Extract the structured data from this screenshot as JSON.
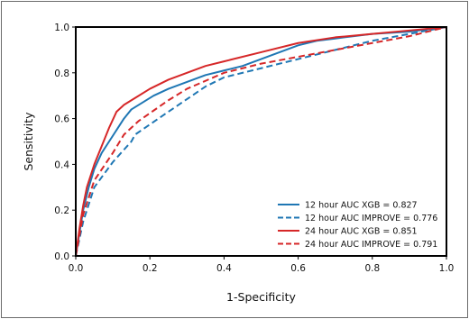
{
  "chart_data": {
    "type": "line",
    "title": "",
    "xlabel": "1-Specificity",
    "ylabel": "Sensitivity",
    "xlim": [
      0.0,
      1.0
    ],
    "ylim": [
      0.0,
      1.0
    ],
    "xticks": [
      "0.0",
      "0.2",
      "0.4",
      "0.6",
      "0.8",
      "1.0"
    ],
    "yticks": [
      "0.0",
      "0.2",
      "0.4",
      "0.6",
      "0.8",
      "1.0"
    ],
    "grid": false,
    "legend_position": "bottom-right",
    "series": [
      {
        "name": "12 hour AUC XGB = 0.827",
        "color": "#1f77b4",
        "style": "solid",
        "points": [
          [
            0,
            0
          ],
          [
            0.01,
            0.1
          ],
          [
            0.02,
            0.2
          ],
          [
            0.035,
            0.3
          ],
          [
            0.05,
            0.38
          ],
          [
            0.07,
            0.45
          ],
          [
            0.09,
            0.5
          ],
          [
            0.11,
            0.55
          ],
          [
            0.13,
            0.6
          ],
          [
            0.15,
            0.64
          ],
          [
            0.18,
            0.67
          ],
          [
            0.21,
            0.7
          ],
          [
            0.25,
            0.73
          ],
          [
            0.3,
            0.76
          ],
          [
            0.35,
            0.79
          ],
          [
            0.4,
            0.81
          ],
          [
            0.45,
            0.83
          ],
          [
            0.5,
            0.86
          ],
          [
            0.55,
            0.89
          ],
          [
            0.6,
            0.92
          ],
          [
            0.65,
            0.94
          ],
          [
            0.7,
            0.95
          ],
          [
            0.8,
            0.97
          ],
          [
            0.9,
            0.98
          ],
          [
            1,
            1
          ]
        ]
      },
      {
        "name": "12 hour AUC IMPROVE = 0.776",
        "color": "#1f77b4",
        "style": "dashed",
        "points": [
          [
            0,
            0
          ],
          [
            0.02,
            0.15
          ],
          [
            0.04,
            0.25
          ],
          [
            0.05,
            0.3
          ],
          [
            0.1,
            0.41
          ],
          [
            0.15,
            0.5
          ],
          [
            0.16,
            0.53
          ],
          [
            0.25,
            0.63
          ],
          [
            0.35,
            0.74
          ],
          [
            0.4,
            0.78
          ],
          [
            0.5,
            0.82
          ],
          [
            0.6,
            0.86
          ],
          [
            0.7,
            0.9
          ],
          [
            0.8,
            0.94
          ],
          [
            0.9,
            0.97
          ],
          [
            1,
            1
          ]
        ]
      },
      {
        "name": "24 hour AUC XGB = 0.851",
        "color": "#d62728",
        "style": "solid",
        "points": [
          [
            0,
            0
          ],
          [
            0.01,
            0.12
          ],
          [
            0.02,
            0.22
          ],
          [
            0.03,
            0.3
          ],
          [
            0.05,
            0.4
          ],
          [
            0.07,
            0.48
          ],
          [
            0.09,
            0.56
          ],
          [
            0.11,
            0.63
          ],
          [
            0.13,
            0.66
          ],
          [
            0.16,
            0.69
          ],
          [
            0.2,
            0.73
          ],
          [
            0.25,
            0.77
          ],
          [
            0.3,
            0.8
          ],
          [
            0.35,
            0.83
          ],
          [
            0.4,
            0.85
          ],
          [
            0.5,
            0.89
          ],
          [
            0.6,
            0.93
          ],
          [
            0.7,
            0.955
          ],
          [
            0.8,
            0.97
          ],
          [
            0.9,
            0.985
          ],
          [
            1,
            1
          ]
        ]
      },
      {
        "name": "24 hour AUC IMPROVE = 0.791",
        "color": "#d62728",
        "style": "dashed",
        "points": [
          [
            0,
            0
          ],
          [
            0.02,
            0.18
          ],
          [
            0.05,
            0.33
          ],
          [
            0.1,
            0.45
          ],
          [
            0.13,
            0.53
          ],
          [
            0.17,
            0.59
          ],
          [
            0.25,
            0.68
          ],
          [
            0.3,
            0.73
          ],
          [
            0.4,
            0.8
          ],
          [
            0.5,
            0.84
          ],
          [
            0.6,
            0.87
          ],
          [
            0.7,
            0.9
          ],
          [
            0.8,
            0.93
          ],
          [
            0.9,
            0.96
          ],
          [
            1,
            1
          ]
        ]
      }
    ]
  }
}
